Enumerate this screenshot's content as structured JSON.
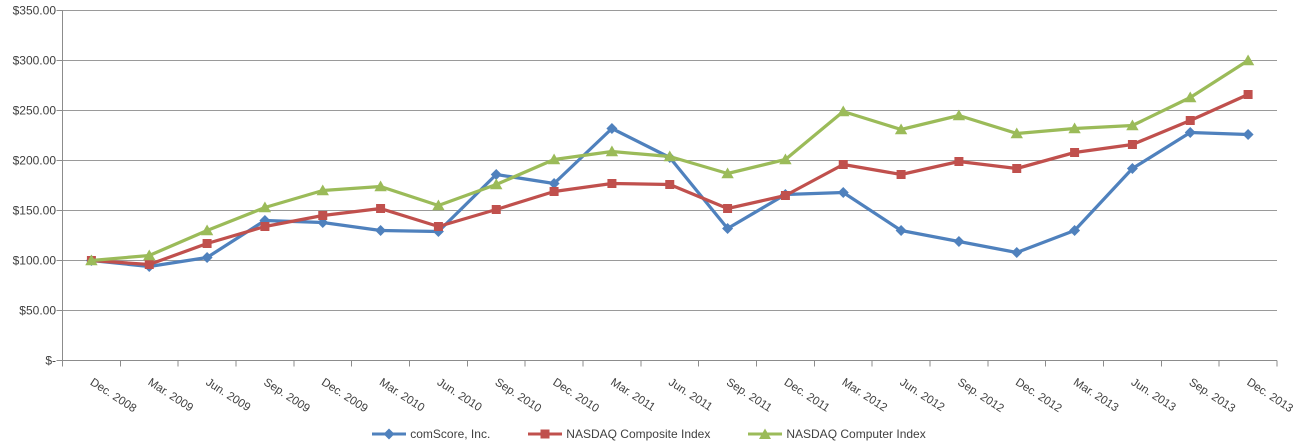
{
  "chart_data": {
    "type": "line",
    "categories": [
      "Dec. 2008",
      "Mar. 2009",
      "Jun. 2009",
      "Sep. 2009",
      "Dec. 2009",
      "Mar. 2010",
      "Jun. 2010",
      "Sep. 2010",
      "Dec. 2010",
      "Mar. 2011",
      "Jun. 2011",
      "Sep. 2011",
      "Dec. 2011",
      "Mar. 2012",
      "Jun. 2012",
      "Sep. 2012",
      "Dec. 2012",
      "Mar. 2013",
      "Jun. 2013",
      "Sep. 2013",
      "Dec. 2013"
    ],
    "series": [
      {
        "name": "comScore, Inc.",
        "color": "#4F81BD",
        "marker": "diamond",
        "values": [
          100,
          94,
          103,
          140,
          138,
          130,
          129,
          186,
          177,
          232,
          203,
          132,
          166,
          168,
          130,
          119,
          108,
          130,
          192,
          228,
          226
        ]
      },
      {
        "name": "NASDAQ Composite Index",
        "color": "#C0504D",
        "marker": "square",
        "values": [
          100,
          96,
          117,
          134,
          145,
          152,
          134,
          151,
          169,
          177,
          176,
          152,
          165,
          196,
          186,
          199,
          192,
          208,
          216,
          240,
          266
        ]
      },
      {
        "name": "NASDAQ Computer Index",
        "color": "#9BBB59",
        "marker": "triangle",
        "values": [
          100,
          105,
          130,
          153,
          170,
          174,
          155,
          176,
          201,
          209,
          204,
          187,
          201,
          249,
          231,
          245,
          227,
          232,
          235,
          263,
          300
        ]
      }
    ],
    "y_axis": {
      "min": 0,
      "max": 350,
      "step": 50,
      "ticks": [
        {
          "value": 350,
          "label": "$350.00"
        },
        {
          "value": 300,
          "label": "$300.00"
        },
        {
          "value": 250,
          "label": "$250.00"
        },
        {
          "value": 200,
          "label": "$200.00"
        },
        {
          "value": 150,
          "label": "$150.00"
        },
        {
          "value": 100,
          "label": "$100.00"
        },
        {
          "value": 50,
          "label": "$50.00"
        },
        {
          "value": 0,
          "label": "$-"
        }
      ]
    },
    "grid": true,
    "legend_position": "bottom",
    "colors": {
      "gridline": "#9A9A9A",
      "axis": "#8C8C8C",
      "axis_text": "#404040"
    }
  }
}
